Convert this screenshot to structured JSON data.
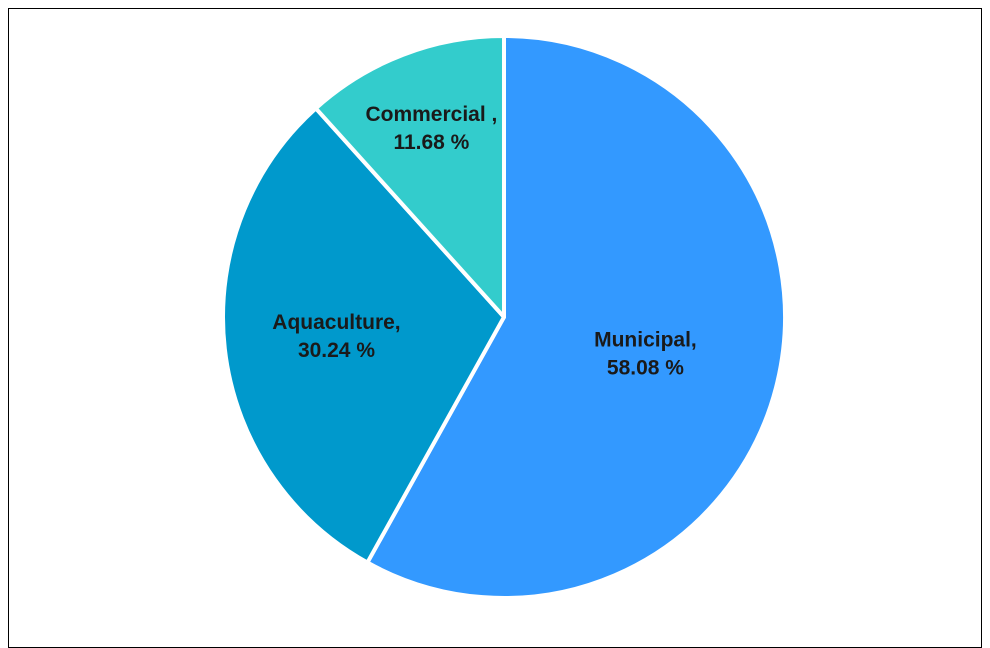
{
  "chart_data": {
    "type": "pie",
    "title": "",
    "slices": [
      {
        "label": "Municipal,",
        "value": 58.08,
        "value_text": "58.08 %",
        "color": "#3399FF"
      },
      {
        "label": "Aquaculture,",
        "value": 30.24,
        "value_text": "30.24 %",
        "color": "#0099CC"
      },
      {
        "label": "Commercial ,",
        "value": 11.68,
        "value_text": "11.68 %",
        "color": "#33CCCC"
      }
    ],
    "start_angle_deg": 0,
    "direction": "clockwise",
    "slice_border_color": "#FFFFFF",
    "legend": "none"
  }
}
